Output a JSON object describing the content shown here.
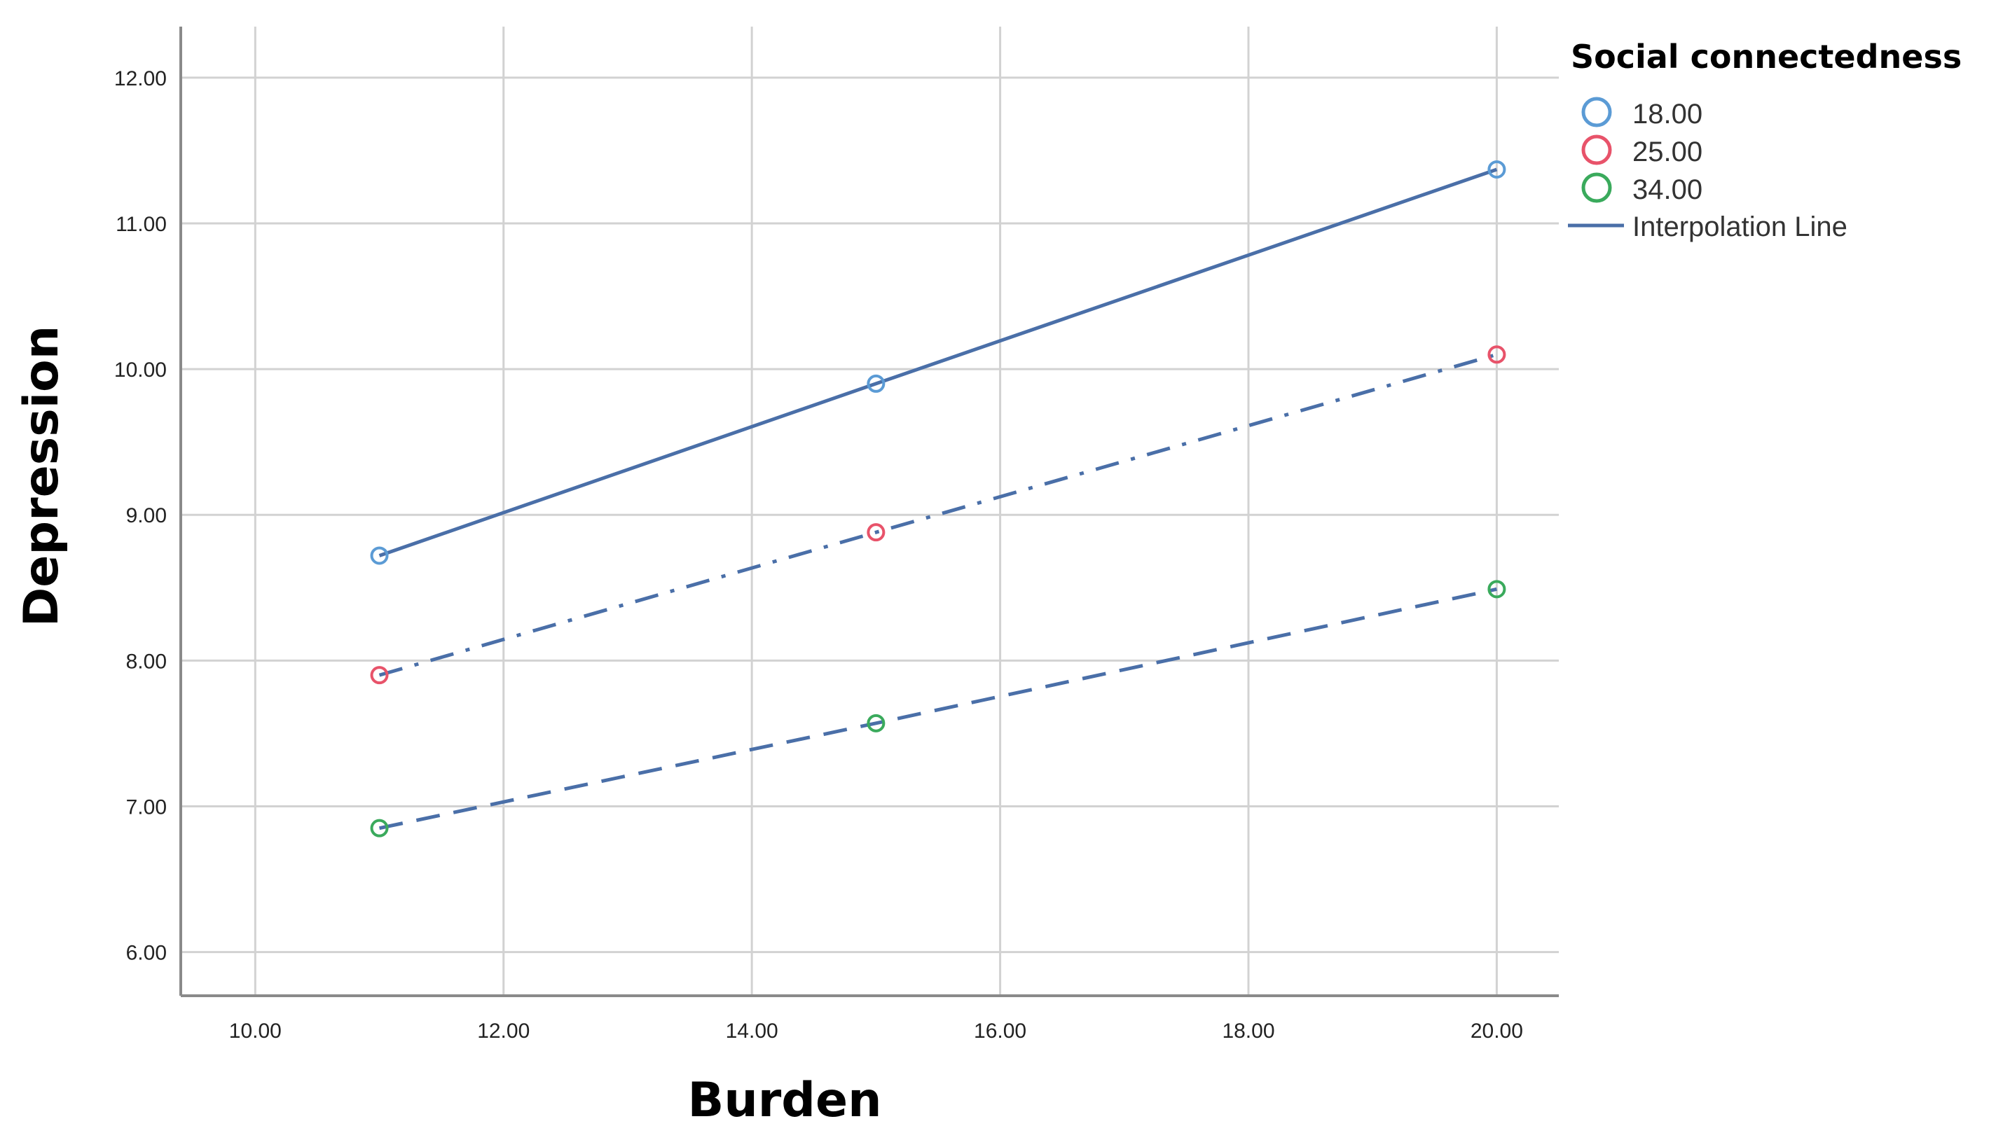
{
  "chart_data": {
    "type": "line",
    "xlabel": "Burden",
    "ylabel": "Depression",
    "xlim": [
      9.4,
      20.5
    ],
    "ylim": [
      5.7,
      12.35
    ],
    "x_ticks": [
      "10.00",
      "12.00",
      "14.00",
      "16.00",
      "18.00",
      "20.00"
    ],
    "y_ticks": [
      "6.00",
      "7.00",
      "8.00",
      "9.00",
      "10.00",
      "11.00",
      "12.00"
    ],
    "grid": true,
    "legend": {
      "title": "Social connectedness",
      "placement": "top-right",
      "interpolation_label": "Interpolation Line"
    },
    "x": [
      11,
      15,
      20
    ],
    "series": [
      {
        "name": "18.00",
        "values": [
          8.72,
          9.9,
          11.37
        ],
        "color": "#5b9bd5",
        "line_style": "solid"
      },
      {
        "name": "25.00",
        "values": [
          7.9,
          8.88,
          10.1
        ],
        "color": "#e8536a",
        "line_style": "dash-dot"
      },
      {
        "name": "34.00",
        "values": [
          6.85,
          7.57,
          8.49
        ],
        "color": "#3aaa5c",
        "line_style": "dashed"
      }
    ],
    "line_color": "#4a6fa8"
  }
}
